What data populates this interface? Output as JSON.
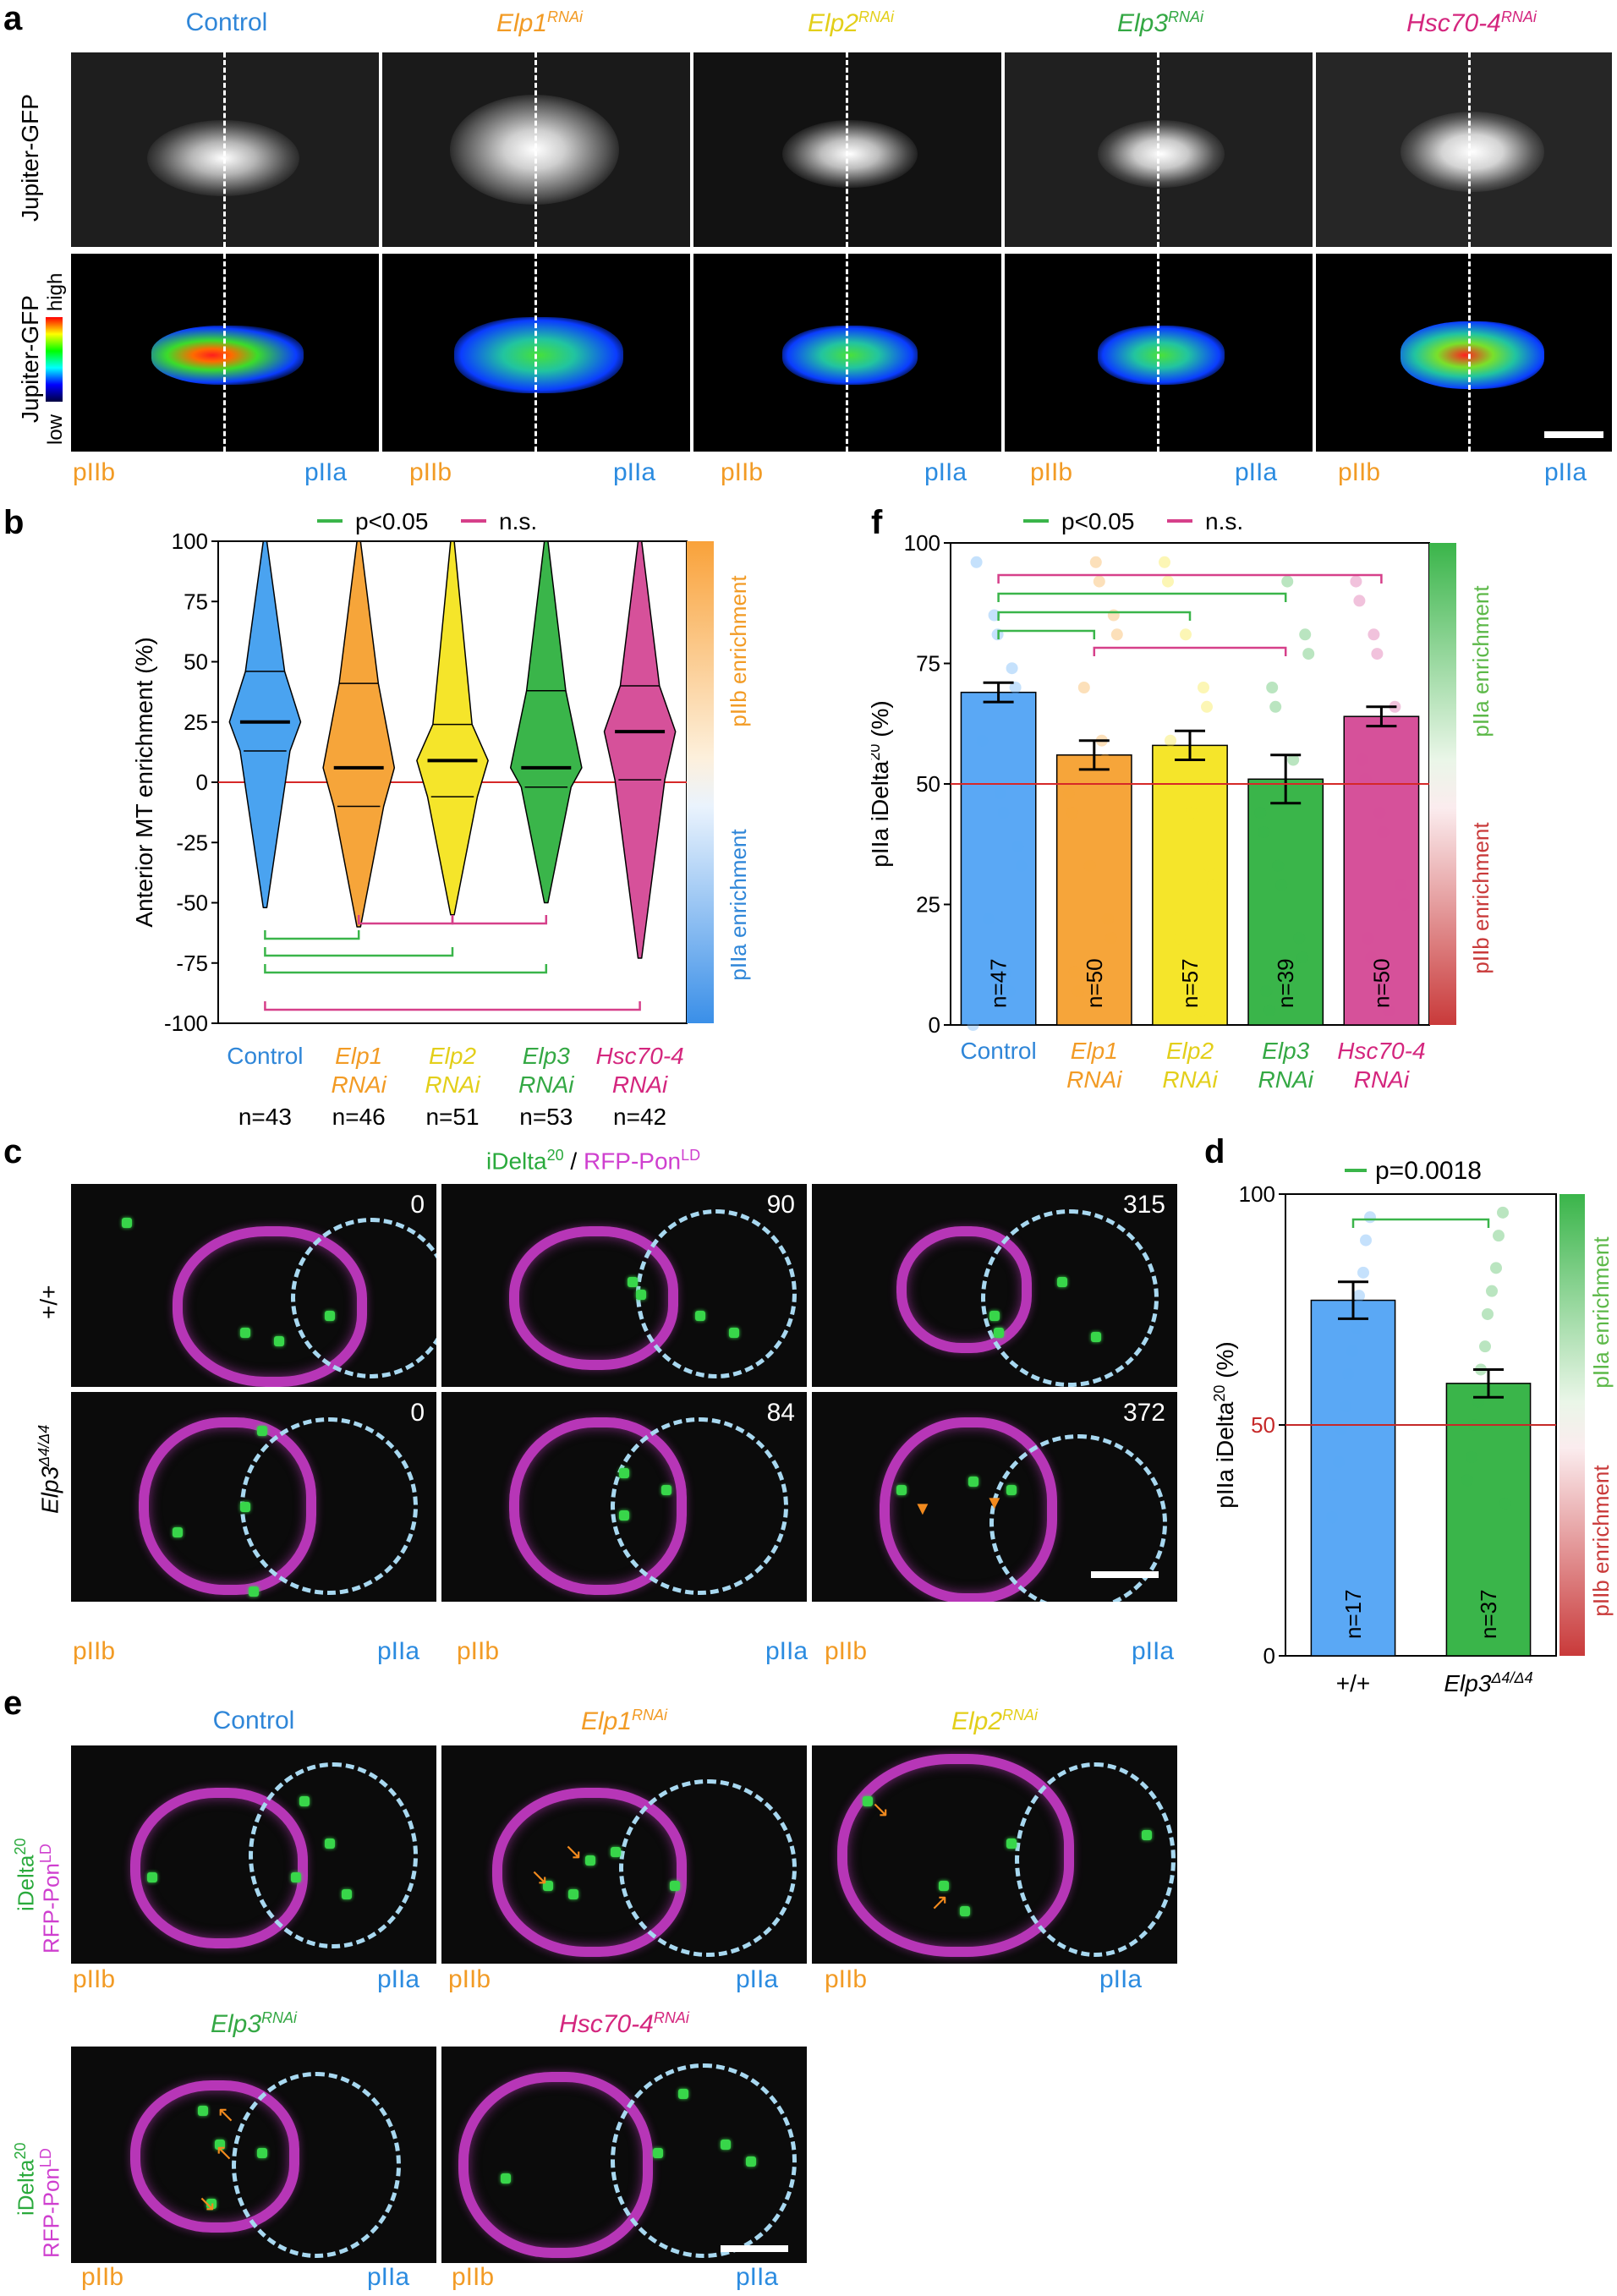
{
  "panel_a": {
    "letter": "a",
    "column_titles": [
      {
        "main": "Control",
        "sup": "",
        "color": "#2f86d8"
      },
      {
        "main": "Elp1",
        "sup": "RNAi",
        "color": "#f29b25"
      },
      {
        "main": "Elp2",
        "sup": "RNAi",
        "color": "#e3cf1a"
      },
      {
        "main": "Elp3",
        "sup": "RNAi",
        "color": "#34a844"
      },
      {
        "main": "Hsc70-4",
        "sup": "RNAi",
        "color": "#d4267e"
      }
    ],
    "row1_label": "Jupiter-GFP",
    "row2_label": "Jupiter-GFP",
    "scale_high": "high",
    "scale_low": "low",
    "pIIb": "pIIb",
    "pIIa": "pIIa"
  },
  "panel_b": {
    "letter": "b",
    "legend": {
      "sig": "p<0.05",
      "ns": "n.s."
    },
    "ylabel": "Anterior MT enrichment (%)",
    "bar_top": "pIIb enrichment",
    "bar_bottom": "pIIa enrichment",
    "n_labels": [
      "n=43",
      "n=46",
      "n=51",
      "n=53",
      "n=42"
    ]
  },
  "chart_data": [
    {
      "type": "violin",
      "ylabel": "Anterior MT enrichment (%)",
      "ylim": [
        -100,
        100
      ],
      "yticks": [
        100,
        75,
        50,
        25,
        0,
        -25,
        -50,
        -75,
        -100
      ],
      "categories": [
        "Control",
        "Elp1 RNAi",
        "Elp2 RNAi",
        "Elp3 RNAi",
        "Hsc70-4 RNAi"
      ],
      "colors": [
        "#4aa3f0",
        "#f6a53a",
        "#f5e52a",
        "#3ab54a",
        "#d6519a"
      ],
      "medians": [
        25,
        6,
        9,
        6,
        21
      ],
      "q1": [
        13,
        -10,
        -6,
        -2,
        1
      ],
      "q3": [
        46,
        41,
        24,
        38,
        40
      ],
      "min": [
        -52,
        -60,
        -55,
        -50,
        -73
      ],
      "max": [
        100,
        100,
        100,
        100,
        100
      ],
      "n": [
        43,
        46,
        51,
        53,
        42
      ],
      "comparisons_sig": [
        [
          0,
          1
        ],
        [
          0,
          2
        ],
        [
          0,
          3
        ]
      ],
      "comparisons_ns": [
        [
          1,
          2
        ],
        [
          2,
          3
        ],
        [
          0,
          4
        ]
      ],
      "reference_line": 0
    },
    {
      "type": "bar",
      "ylabel": "pIIa iDelta20 (%)",
      "ylim": [
        0,
        100
      ],
      "yticks": [
        0,
        25,
        50,
        75,
        100
      ],
      "categories": [
        "Control",
        "Elp1 RNAi",
        "Elp2 RNAi",
        "Elp3 RNAi",
        "Hsc70-4 RNAi"
      ],
      "values": [
        69,
        56,
        58,
        51,
        64
      ],
      "errors": [
        2,
        3,
        3,
        5,
        2
      ],
      "n": [
        47,
        50,
        57,
        39,
        50
      ],
      "colors": [
        "#5aa8f5",
        "#f6a53a",
        "#f5e52a",
        "#3ab54a",
        "#d6519a"
      ],
      "comparisons_sig": [
        [
          0,
          1
        ],
        [
          0,
          2
        ],
        [
          0,
          3
        ]
      ],
      "comparisons_ns": [
        [
          0,
          4
        ],
        [
          1,
          3
        ]
      ],
      "reference_line": 50
    },
    {
      "type": "bar",
      "ylabel": "pIIa iDelta20 (%)",
      "ylim": [
        0,
        100
      ],
      "yticks": [
        0,
        50,
        100
      ],
      "categories": [
        "+/+",
        "Elp3Δ4/Δ4"
      ],
      "values": [
        77,
        59
      ],
      "errors": [
        4,
        3
      ],
      "n": [
        17,
        37
      ],
      "colors": [
        "#5aa8f5",
        "#3ab54a"
      ],
      "pvalue": "p=0.0018",
      "reference_line": 50
    }
  ],
  "panel_f": {
    "letter": "f",
    "legend": {
      "sig": "p<0.05",
      "ns": "n.s."
    },
    "ylabel_main": "pIIa iDelta",
    "ylabel_sup": "20",
    "ylabel_tail": " (%)",
    "bar_top": "pIIa enrichment",
    "bar_bottom": "pIIb enrichment",
    "n_labels": [
      "n=47",
      "n=50",
      "n=57",
      "n=39",
      "n=50"
    ]
  },
  "panel_c": {
    "letter": "c",
    "title_a": "iDelta",
    "title_a_sup": "20",
    "title_sep": " / ",
    "title_b": "RFP-Pon",
    "title_b_sup": "LD",
    "row1_label": "+/+",
    "row2_label": "Elp3",
    "row2_sup": "Δ4/Δ4",
    "times_row1": [
      "0",
      "90",
      "315"
    ],
    "times_row2": [
      "0",
      "84",
      "372"
    ],
    "pIIb": "pIIb",
    "pIIa": "pIIa"
  },
  "panel_d": {
    "letter": "d",
    "pvalue": "p=0.0018",
    "ylabel_main": "pIIa iDelta",
    "ylabel_sup": "20",
    "ylabel_tail": " (%)",
    "bar_top": "pIIa enrichment",
    "bar_bottom": "pIIb enrichment",
    "n_labels": [
      "n=17",
      "n=37"
    ],
    "x_labels": [
      "+/+",
      "Elp3"
    ],
    "x_sup": "Δ4/Δ4"
  },
  "panel_e": {
    "letter": "e",
    "titles": [
      {
        "main": "Control",
        "sup": "",
        "color": "#2f86d8"
      },
      {
        "main": "Elp1",
        "sup": "RNAi",
        "color": "#f29b25"
      },
      {
        "main": "Elp2",
        "sup": "RNAi",
        "color": "#e3cf1a"
      },
      {
        "main": "Elp3",
        "sup": "RNAi",
        "color": "#34a844"
      },
      {
        "main": "Hsc70-4",
        "sup": "RNAi",
        "color": "#d4267e"
      }
    ],
    "row_label_a": "iDelta",
    "row_label_a_sup": "20",
    "row_label_b": "RFP-Pon",
    "row_label_b_sup": "LD",
    "pIIb": "pIIb",
    "pIIa": "pIIa"
  }
}
